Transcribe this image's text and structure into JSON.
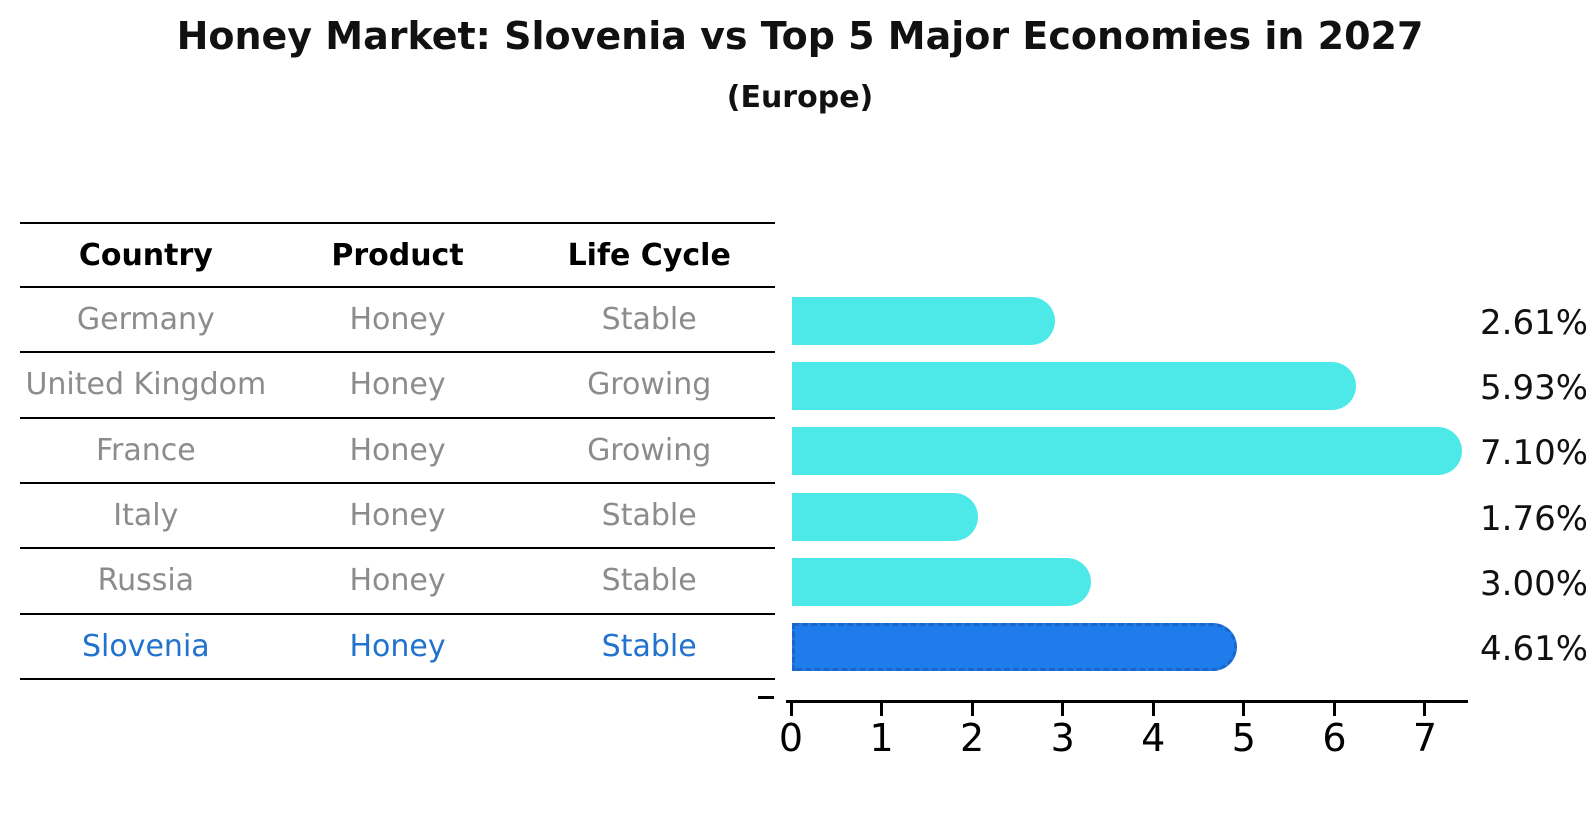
{
  "title": "Honey Market: Slovenia vs Top 5 Major Economies in 2027",
  "subtitle": "(Europe)",
  "table": {
    "headers": [
      "Country",
      "Product",
      "Life Cycle"
    ],
    "rows": [
      {
        "country": "Germany",
        "product": "Honey",
        "life_cycle": "Stable",
        "highlight": false
      },
      {
        "country": "United Kingdom",
        "product": "Honey",
        "life_cycle": "Growing",
        "highlight": false
      },
      {
        "country": "France",
        "product": "Honey",
        "life_cycle": "Growing",
        "highlight": false
      },
      {
        "country": "Italy",
        "product": "Honey",
        "life_cycle": "Stable",
        "highlight": false
      },
      {
        "country": "Russia",
        "product": "Honey",
        "life_cycle": "Stable",
        "highlight": false
      },
      {
        "country": "Slovenia",
        "product": "Honey",
        "life_cycle": "Stable",
        "highlight": true
      }
    ]
  },
  "chart_data": {
    "type": "bar",
    "orientation": "horizontal",
    "title": "Honey Market: Slovenia vs Top 5 Major Economies in 2027 (Europe)",
    "categories": [
      "Germany",
      "United Kingdom",
      "France",
      "Italy",
      "Russia",
      "Slovenia"
    ],
    "values": [
      2.61,
      5.93,
      7.1,
      1.76,
      3.0,
      4.61
    ],
    "value_labels": [
      "2.61%",
      "5.93%",
      "7.10%",
      "1.76%",
      "3.00%",
      "4.61%"
    ],
    "highlight_index": 5,
    "xticks": [
      0,
      1,
      2,
      3,
      4,
      5,
      6,
      7
    ],
    "xlim": [
      0,
      7.45
    ],
    "xlabel": "",
    "ylabel": "",
    "grid": false,
    "legend": "none",
    "colors": {
      "bar": "#4DE9E9",
      "highlight_bar": "#1E7CEB",
      "highlight_border": "#1A66C9",
      "highlight_text": "#2173CD",
      "row_text": "#8C8C8C",
      "header_text": "#000000",
      "axis": "#000000"
    }
  }
}
